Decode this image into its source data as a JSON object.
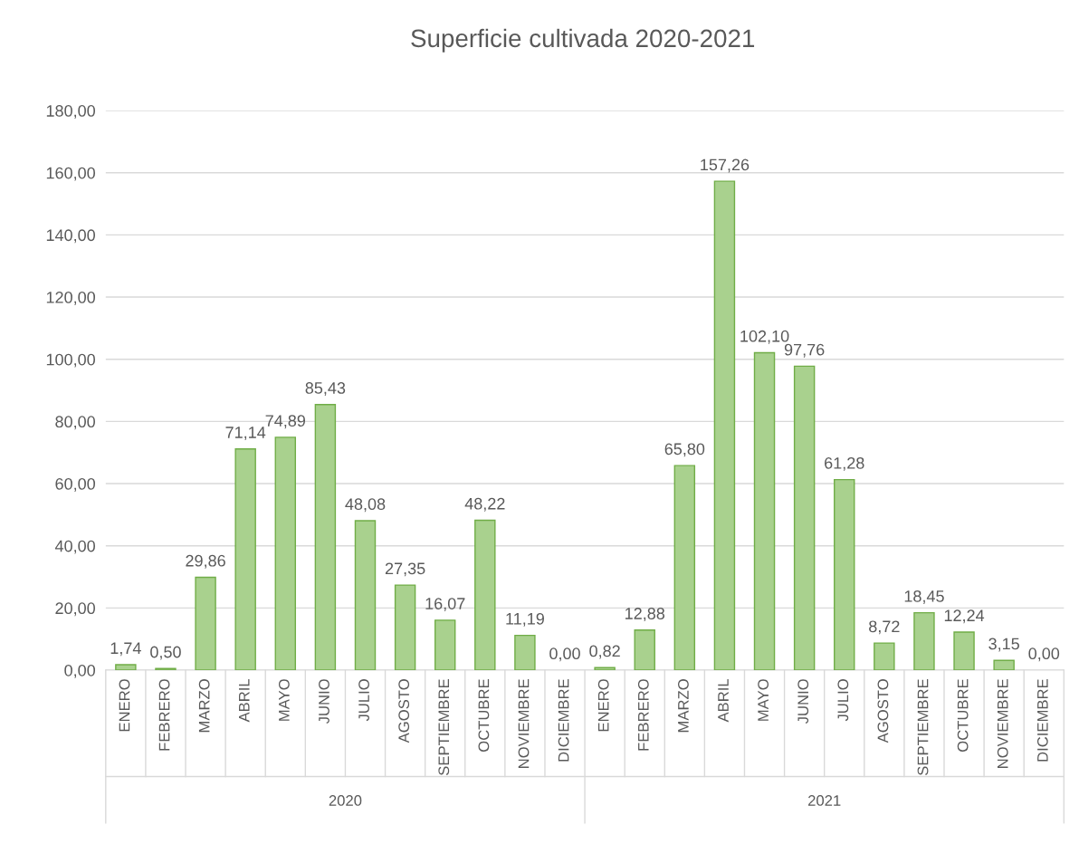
{
  "chart_data": {
    "type": "bar",
    "title": "Superficie cultivada 2020-2021",
    "categories": [
      "ENERO",
      "FEBRERO",
      "MARZO",
      "ABRIL",
      "MAYO",
      "JUNIO",
      "JULIO",
      "AGOSTO",
      "SEPTIEMBRE",
      "OCTUBRE",
      "NOVIEMBRE",
      "DICIEMBRE",
      "ENERO",
      "FEBRERO",
      "MARZO",
      "ABRIL",
      "MAYO",
      "JUNIO",
      "JULIO",
      "AGOSTO",
      "SEPTIEMBRE",
      "OCTUBRE",
      "NOVIEMBRE",
      "DICIEMBRE"
    ],
    "values": [
      1.74,
      0.5,
      29.86,
      71.14,
      74.89,
      85.43,
      48.08,
      27.35,
      16.07,
      48.22,
      11.19,
      0.0,
      0.82,
      12.88,
      65.8,
      157.26,
      102.1,
      97.76,
      61.28,
      8.72,
      18.45,
      12.24,
      3.15,
      0.0
    ],
    "value_labels": [
      "1,74",
      "0,50",
      "29,86",
      "71,14",
      "74,89",
      "85,43",
      "48,08",
      "27,35",
      "16,07",
      "48,22",
      "11,19",
      "0,00",
      "0,82",
      "12,88",
      "65,80",
      "157,26",
      "102,10",
      "97,76",
      "61,28",
      "8,72",
      "18,45",
      "12,24",
      "3,15",
      "0,00"
    ],
    "color": "#a9d18e",
    "annotations": [
      "2020",
      "2021"
    ],
    "ylim": [
      0,
      180
    ],
    "yticks": [
      {
        "value": 0,
        "label": "0,00"
      },
      {
        "value": 20,
        "label": "20,00"
      },
      {
        "value": 40,
        "label": "40,00"
      },
      {
        "value": 60,
        "label": "60,00"
      },
      {
        "value": 80,
        "label": "80,00"
      },
      {
        "value": 100,
        "label": "100,00"
      },
      {
        "value": 120,
        "label": "120,00"
      },
      {
        "value": 140,
        "label": "140,00"
      },
      {
        "value": 160,
        "label": "160,00"
      },
      {
        "value": 180,
        "label": "180,00"
      }
    ],
    "grid": "y"
  }
}
